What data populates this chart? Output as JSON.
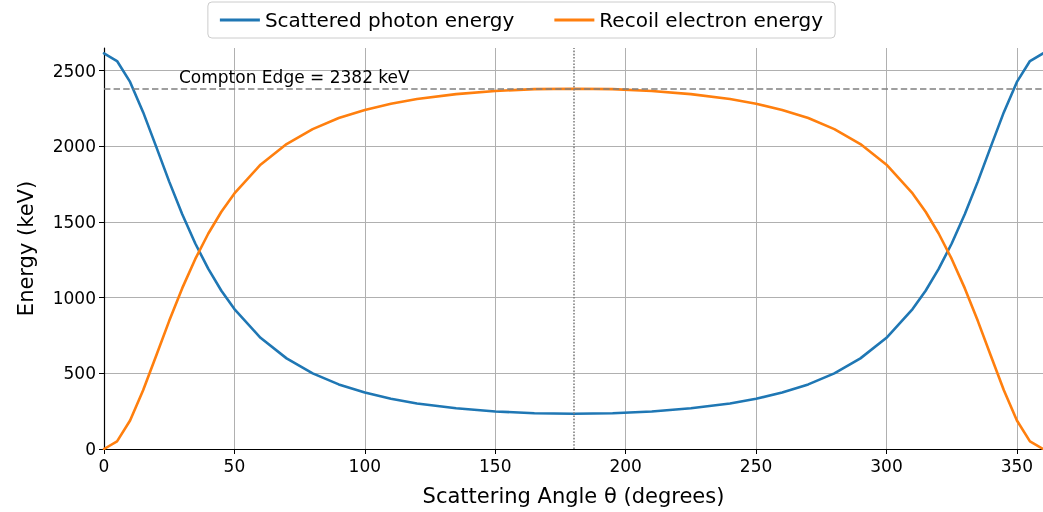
{
  "chart_data": {
    "type": "line",
    "xlabel": "Scattering Angle θ (degrees)",
    "ylabel": "Energy (keV)",
    "x": [
      0,
      5,
      10,
      15,
      20,
      25,
      30,
      35,
      40,
      45,
      50,
      60,
      70,
      80,
      90,
      100,
      110,
      120,
      135,
      150,
      165,
      180,
      195,
      210,
      225,
      240,
      250,
      260,
      270,
      280,
      290,
      300,
      310,
      315,
      320,
      325,
      330,
      335,
      340,
      345,
      350,
      355,
      360
    ],
    "series": [
      {
        "name": "Scattered photon energy",
        "color": "#1f77b4",
        "values": [
          2614,
          2564,
          2426,
          2226,
          1998,
          1767,
          1551,
          1358,
          1190,
          1046,
          925,
          735,
          599,
          500,
          427,
          373,
          332,
          301,
          269,
          248,
          236,
          233,
          236,
          248,
          269,
          301,
          332,
          373,
          427,
          500,
          599,
          735,
          925,
          1046,
          1190,
          1358,
          1551,
          1767,
          1998,
          2226,
          2426,
          2564,
          2614
        ]
      },
      {
        "name": "Recoil electron energy",
        "color": "#ff7f0e",
        "values": [
          0,
          50,
          188,
          388,
          616,
          847,
          1063,
          1256,
          1424,
          1568,
          1689,
          1879,
          2015,
          2114,
          2187,
          2241,
          2282,
          2313,
          2345,
          2366,
          2378,
          2381,
          2378,
          2366,
          2345,
          2313,
          2282,
          2241,
          2187,
          2114,
          2015,
          1879,
          1689,
          1568,
          1424,
          1256,
          1063,
          847,
          616,
          388,
          188,
          50,
          0
        ]
      }
    ],
    "xlim": [
      0,
      360
    ],
    "ylim": [
      0,
      2650
    ],
    "xticks": [
      0,
      50,
      100,
      150,
      200,
      250,
      300,
      350
    ],
    "yticks": [
      0,
      500,
      1000,
      1500,
      2000,
      2500
    ],
    "ref_lines": [
      {
        "axis": "y",
        "value": 2382,
        "label": "Compton Edge = 2382 keV",
        "color": "#808080",
        "line_style": "dashed"
      },
      {
        "axis": "x",
        "value": 180,
        "label": null,
        "color": "#808080",
        "line_style": "dotted"
      }
    ],
    "grid": true,
    "legend": "top",
    "marker": "none",
    "line_style": "solid"
  }
}
